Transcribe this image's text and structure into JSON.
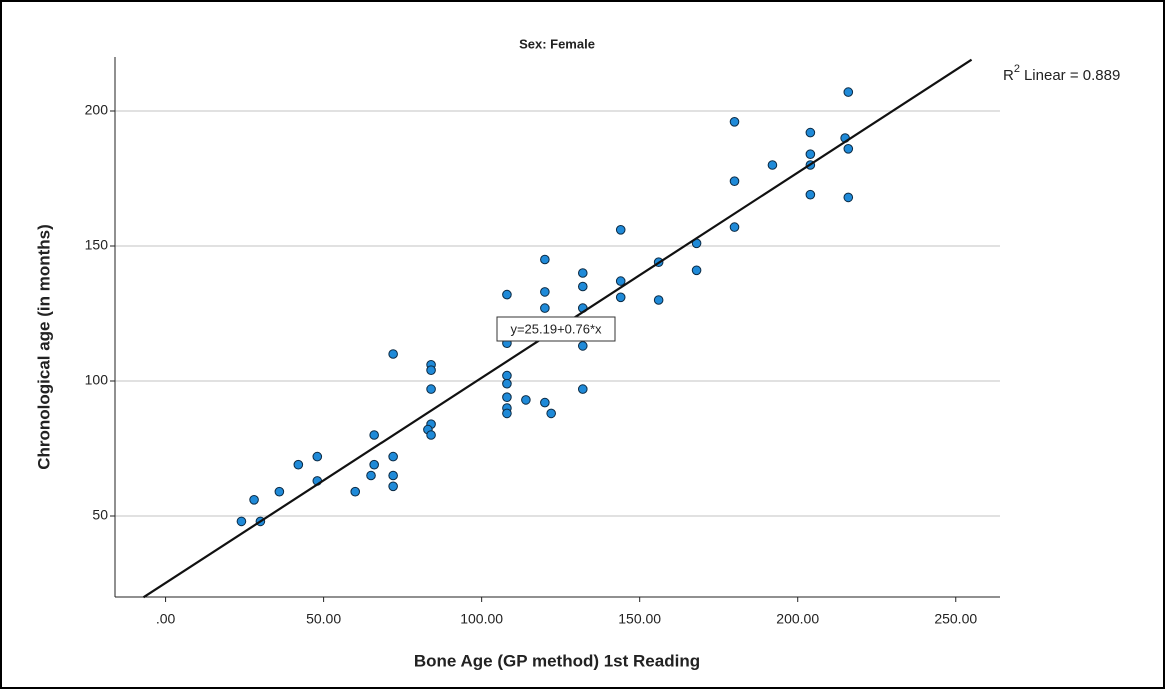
{
  "chart_data": {
    "type": "scatter",
    "title": "Sex: Female",
    "x_label": "Bone Age (GP method) 1st Reading",
    "y_label": "Chronological age (in months)",
    "xlim": [
      -16,
      264
    ],
    "ylim": [
      20,
      220
    ],
    "xticks": [
      {
        "value": 0,
        "label": ".00"
      },
      {
        "value": 50,
        "label": "50.00"
      },
      {
        "value": 100,
        "label": "100.00"
      },
      {
        "value": 150,
        "label": "150.00"
      },
      {
        "value": 200,
        "label": "200.00"
      },
      {
        "value": 250,
        "label": "250.00"
      }
    ],
    "yticks": [
      50,
      100,
      150,
      200
    ],
    "grid": true,
    "color": "#1f8ad8",
    "x": [
      24,
      28,
      30,
      36,
      42,
      48,
      48,
      60,
      66,
      66,
      65,
      72,
      72,
      72,
      72,
      84,
      84,
      84,
      84,
      83,
      84,
      108,
      108,
      108,
      108,
      108,
      108,
      108,
      114,
      120,
      120,
      120,
      120,
      122,
      132,
      132,
      132,
      132,
      132,
      144,
      144,
      144,
      156,
      156,
      168,
      168,
      180,
      180,
      180,
      192,
      204,
      204,
      204,
      204,
      215,
      216,
      216,
      216
    ],
    "values": [
      48,
      56,
      48,
      59,
      69,
      72,
      63,
      59,
      80,
      69,
      65,
      110,
      72,
      65,
      61,
      106,
      104,
      97,
      84,
      82,
      80,
      132,
      114,
      102,
      99,
      94,
      90,
      88,
      93,
      145,
      133,
      127,
      92,
      88,
      140,
      135,
      127,
      113,
      97,
      156,
      137,
      131,
      144,
      130,
      151,
      141,
      196,
      174,
      157,
      180,
      192,
      184,
      180,
      169,
      190,
      207,
      186,
      168
    ],
    "fit": {
      "intercept": 25.19,
      "slope": 0.76,
      "x_range": [
        -7,
        255
      ],
      "color": "#111111",
      "equation": "y=25.19+0.76*x"
    },
    "r2_annotation": {
      "base": "R",
      "superscript": "2",
      "text": "Linear = 0.889"
    }
  }
}
